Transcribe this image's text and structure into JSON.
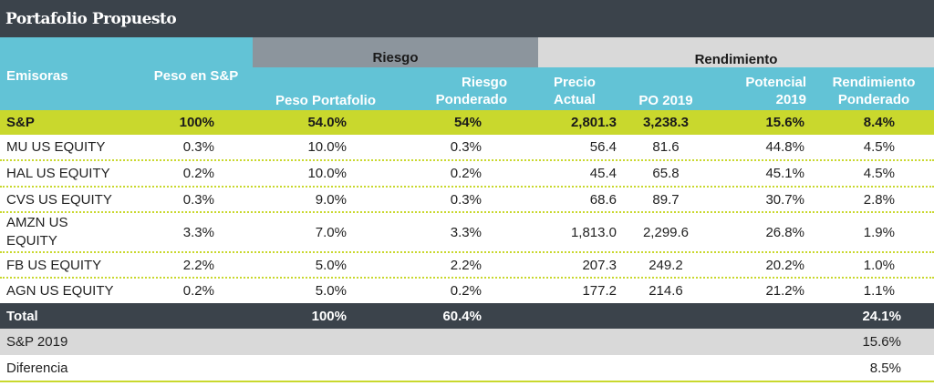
{
  "title": "Portafolio Propuesto",
  "groups": {
    "riesgo": "Riesgo",
    "rendimiento": "Rendimiento"
  },
  "headers": {
    "emisoras": "Emisoras",
    "peso_sp": "Peso en S&P",
    "peso_portafolio": "Peso Portafolio",
    "riesgo_ponderado_1": "Riesgo",
    "riesgo_ponderado_2": "Ponderado",
    "precio_actual_1": "Precio",
    "precio_actual_2": "Actual",
    "po_2019": "PO 2019",
    "potencial_1": "Potencial",
    "potencial_2": "2019",
    "rend_pond_1": "Rendimiento",
    "rend_pond_2": "Ponderado"
  },
  "sp_row": {
    "name": "S&P",
    "peso_sp": "100%",
    "peso_port": "54.0%",
    "riesgo_pond": "54%",
    "precio": "2,801.3",
    "po": "3,238.3",
    "potencial": "15.6%",
    "rend_pond": "8.4%"
  },
  "rows": [
    {
      "name": "MU US EQUITY",
      "peso_sp": "0.3%",
      "peso_port": "10.0%",
      "riesgo_pond": "0.3%",
      "precio": "56.4",
      "po": "81.6",
      "potencial": "44.8%",
      "rend_pond": "4.5%"
    },
    {
      "name": "HAL US EQUITY",
      "peso_sp": "0.2%",
      "peso_port": "10.0%",
      "riesgo_pond": "0.2%",
      "precio": "45.4",
      "po": "65.8",
      "potencial": "45.1%",
      "rend_pond": "4.5%"
    },
    {
      "name": "CVS US EQUITY",
      "peso_sp": "0.3%",
      "peso_port": "9.0%",
      "riesgo_pond": "0.3%",
      "precio": "68.6",
      "po": "89.7",
      "potencial": "30.7%",
      "rend_pond": "2.8%"
    },
    {
      "name_1": "AMZN US",
      "name_2": "EQUITY",
      "peso_sp": "3.3%",
      "peso_port": "7.0%",
      "riesgo_pond": "3.3%",
      "precio": "1,813.0",
      "po": "2,299.6",
      "potencial": "26.8%",
      "rend_pond": "1.9%"
    },
    {
      "name": "FB US EQUITY",
      "peso_sp": "2.2%",
      "peso_port": "5.0%",
      "riesgo_pond": "2.2%",
      "precio": "207.3",
      "po": "249.2",
      "potencial": "20.2%",
      "rend_pond": "1.0%"
    },
    {
      "name": "AGN US EQUITY",
      "peso_sp": "0.2%",
      "peso_port": "5.0%",
      "riesgo_pond": "0.2%",
      "precio": "177.2",
      "po": "214.6",
      "potencial": "21.2%",
      "rend_pond": "1.1%"
    }
  ],
  "total_row": {
    "name": "Total",
    "peso_port": "100%",
    "riesgo_pond": "60.4%",
    "rend_pond": "24.1%"
  },
  "sp2019_row": {
    "name": "S&P 2019",
    "rend_pond": "15.6%"
  },
  "diferencia_row": {
    "name": "Diferencia",
    "rend_pond": "8.5%"
  },
  "colors": {
    "dark": "#3b434b",
    "teal": "#62c3d6",
    "lime": "#c9d82d",
    "gray": "#8c959d",
    "light_gray": "#d9d9d9"
  }
}
